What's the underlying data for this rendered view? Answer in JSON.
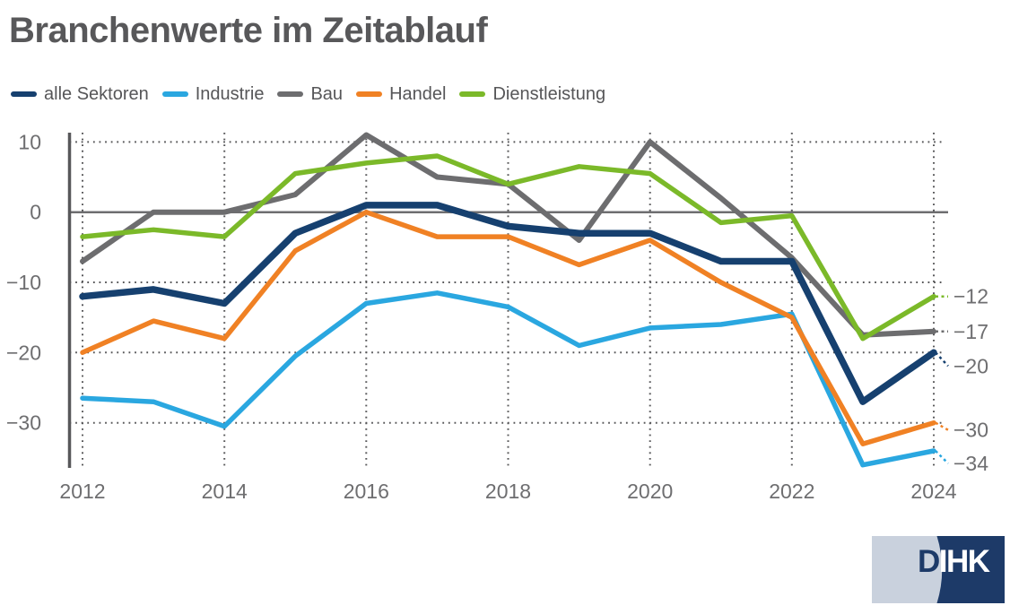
{
  "title": "Branchenwerte im Zeitablauf",
  "legend": {
    "items": [
      {
        "label": "alle Sektoren",
        "color": "#16406f"
      },
      {
        "label": "Industrie",
        "color": "#2aa7e0"
      },
      {
        "label": "Bau",
        "color": "#6d6d6f"
      },
      {
        "label": "Handel",
        "color": "#f08124"
      },
      {
        "label": "Dienstleistung",
        "color": "#7bb929"
      }
    ]
  },
  "chart_data": {
    "type": "line",
    "x": [
      2012,
      2013,
      2014,
      2015,
      2016,
      2017,
      2018,
      2019,
      2020,
      2021,
      2022,
      2023,
      2024
    ],
    "x_tick_labels": [
      "2012",
      "2014",
      "2016",
      "2018",
      "2020",
      "2022",
      "2024"
    ],
    "y_ticks": [
      {
        "value": 10,
        "label": "10"
      },
      {
        "value": 0,
        "label": "0"
      },
      {
        "value": -10,
        "label": "−10"
      },
      {
        "value": -20,
        "label": "−20"
      },
      {
        "value": -30,
        "label": "−30"
      }
    ],
    "ylim": [
      -37,
      12
    ],
    "grid": "dotted",
    "legend_position": "top",
    "series": [
      {
        "name": "alle Sektoren",
        "color": "#16406f",
        "values": [
          -12,
          -11,
          -13,
          -3,
          1,
          1,
          -2,
          -3,
          -3,
          -7,
          -7,
          -27,
          -20
        ],
        "end_label": "−20"
      },
      {
        "name": "Industrie",
        "color": "#2aa7e0",
        "values": [
          -26.5,
          -27,
          -30.5,
          -20.5,
          -13,
          -11.5,
          -13.5,
          -19,
          -16.5,
          -16,
          -14.5,
          -36,
          -34
        ],
        "end_label": "−34"
      },
      {
        "name": "Bau",
        "color": "#6d6d6f",
        "values": [
          -7,
          0,
          0,
          2.5,
          11,
          5,
          4,
          -4,
          10,
          2,
          -6.5,
          -17.5,
          -17
        ],
        "end_label": "−17"
      },
      {
        "name": "Handel",
        "color": "#f08124",
        "values": [
          -20,
          -15.5,
          -18,
          -5.5,
          0,
          -3.5,
          -3.5,
          -7.5,
          -4,
          -10,
          -15,
          -33,
          -30
        ],
        "end_label": "−30"
      },
      {
        "name": "Dienstleistung",
        "color": "#7bb929",
        "values": [
          -3.5,
          -2.5,
          -3.5,
          5.5,
          7,
          8,
          4,
          6.5,
          5.5,
          -1.5,
          -0.5,
          -18,
          -12
        ],
        "end_label": "−12"
      }
    ]
  },
  "logo": {
    "d": "D",
    "ihk": "IHK",
    "light_color": "#c9d1dd",
    "dark_color": "#1d3a68"
  }
}
